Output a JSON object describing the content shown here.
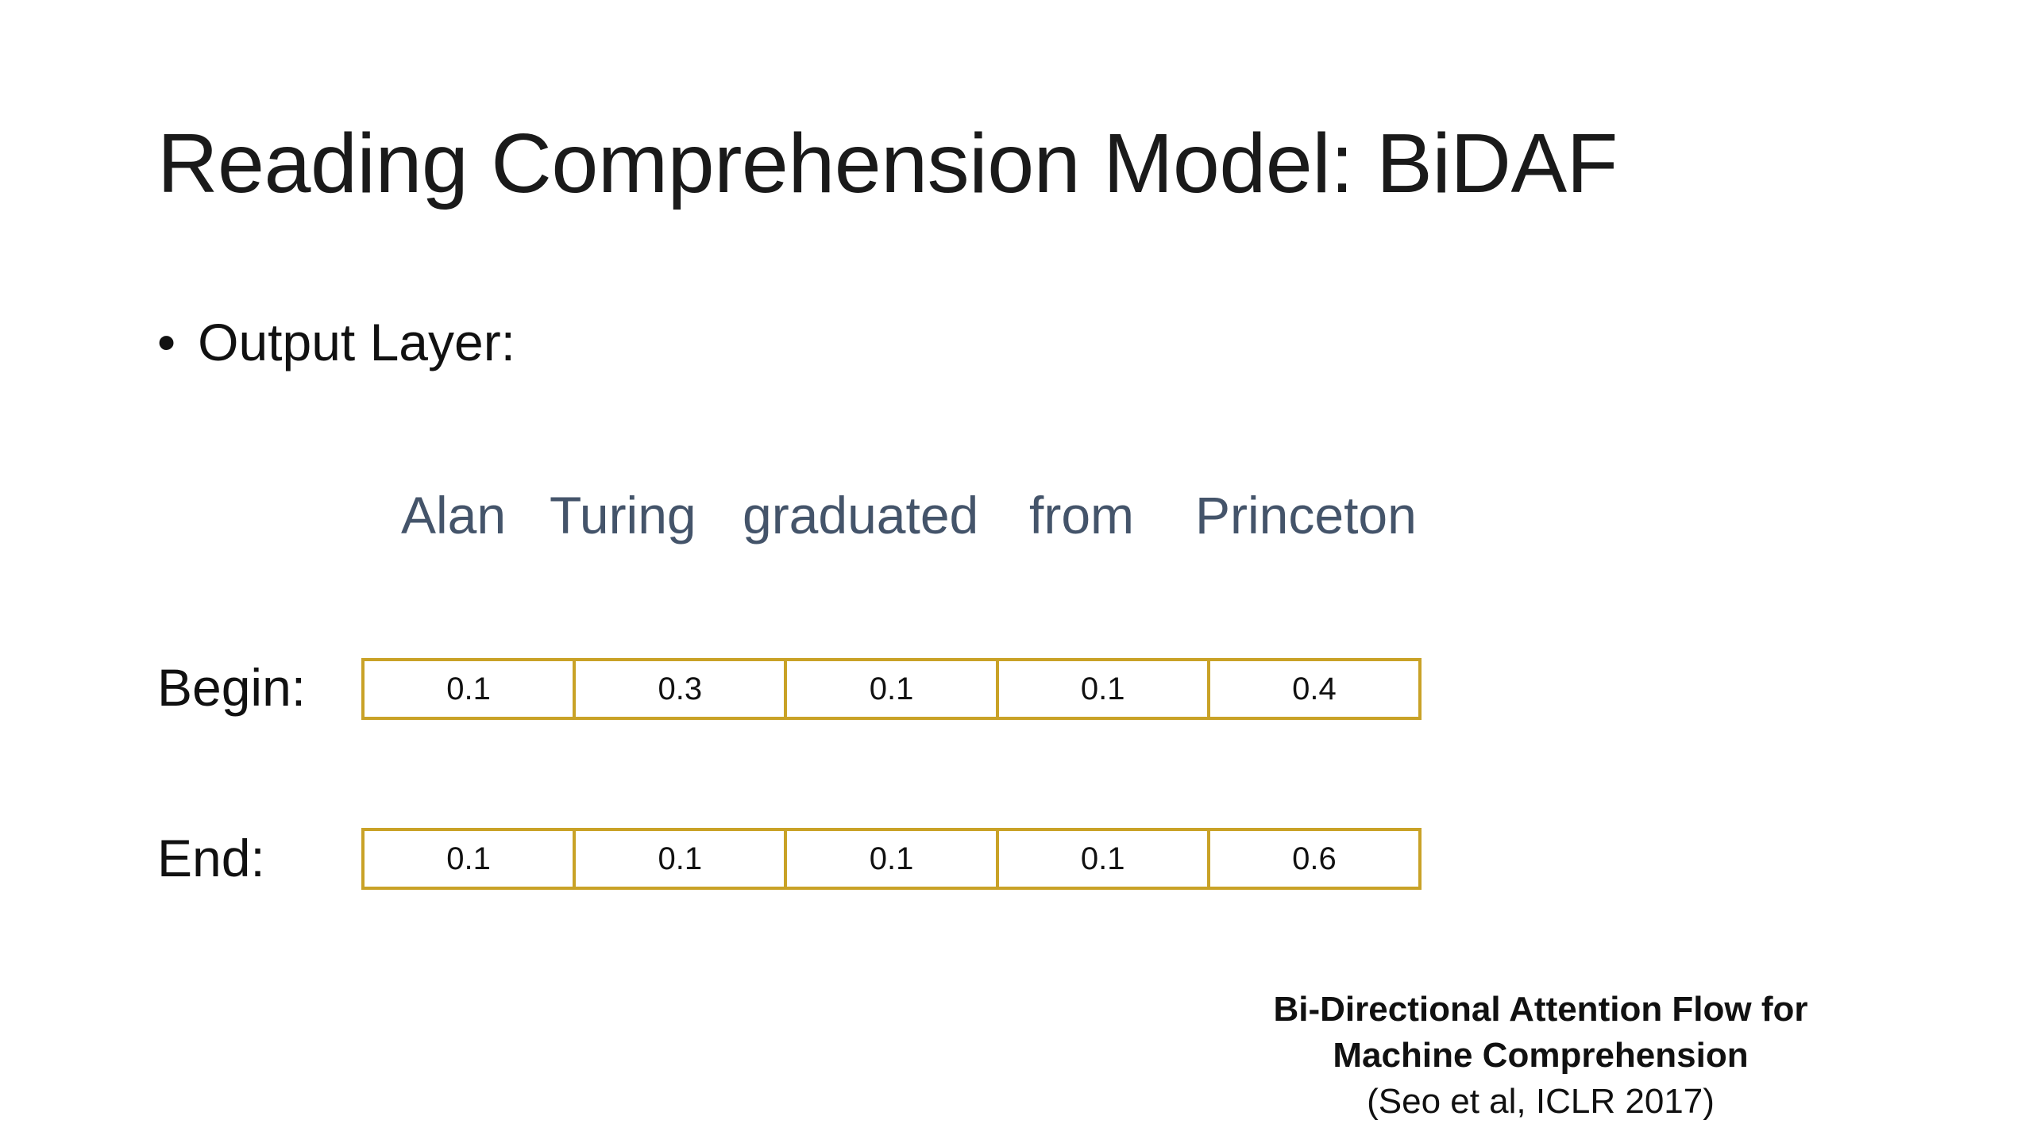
{
  "title": "Reading Comprehension Model: BiDAF",
  "bullet": {
    "symbol": "•",
    "text": "Output Layer:"
  },
  "tokens": [
    "Alan",
    "Turing",
    "graduated",
    "from",
    "Princeton"
  ],
  "rows": [
    {
      "label": "Begin:",
      "values": [
        "0.1",
        "0.3",
        "0.1",
        "0.1",
        "0.4"
      ]
    },
    {
      "label": "End:",
      "values": [
        "0.1",
        "0.1",
        "0.1",
        "0.1",
        "0.6"
      ]
    }
  ],
  "citation": {
    "line1": "Bi-Directional Attention Flow for",
    "line2": "Machine Comprehension",
    "line3": "(Seo et al, ICLR 2017)"
  },
  "colors": {
    "box_border": "#c9a227",
    "token_text": "#44546a"
  }
}
